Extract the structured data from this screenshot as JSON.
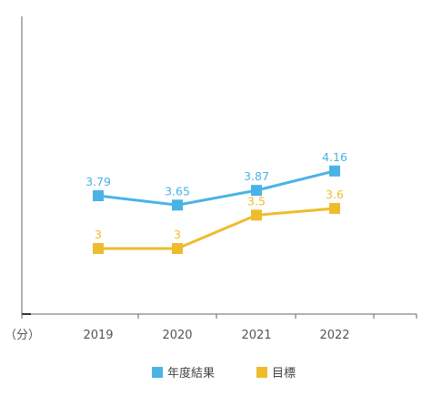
{
  "chart_data": {
    "type": "line",
    "title": "",
    "xlabel": "",
    "ylabel": "",
    "unit_label": "（分）",
    "categories": [
      "2019",
      "2020",
      "2021",
      "2022"
    ],
    "ylim": [
      2.0,
      4.5
    ],
    "grid": false,
    "legend_position": "bottom",
    "series": [
      {
        "name": "年度結果",
        "color": "#4ab3e6",
        "values": [
          3.79,
          3.65,
          3.87,
          4.16
        ],
        "labels": [
          "3.79",
          "3.65",
          "3.87",
          "4.16"
        ]
      },
      {
        "name": "目標",
        "color": "#eebc2c",
        "values": [
          3,
          3,
          3.5,
          3.6
        ],
        "labels": [
          "3",
          "3",
          "3.5",
          "3.6"
        ]
      }
    ]
  }
}
